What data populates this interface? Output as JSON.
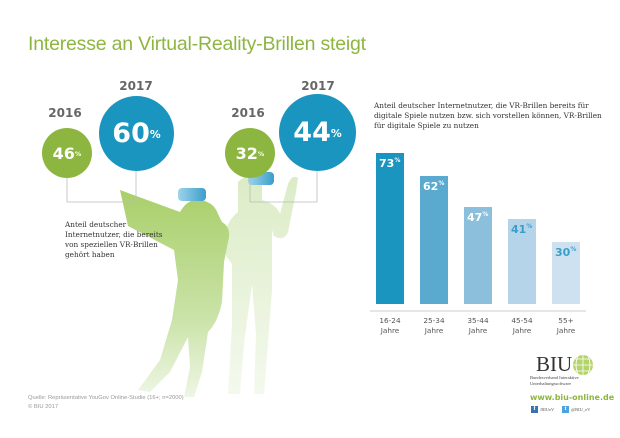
{
  "title": "Interesse an Virtual-Reality-Brillen steigt",
  "circles_left": {
    "y2016": "2016",
    "v2016": "46",
    "y2017": "2017",
    "v2017": "60"
  },
  "circles_right": {
    "y2016": "2016",
    "v2016": "32",
    "y2017": "2017",
    "v2017": "44"
  },
  "percent_sign": "%",
  "note_left": "Anteil deutscher Internetnutzer, die bereits von speziellen VR-Brillen gehört haben",
  "colors": {
    "green": "#8db640",
    "blue": "#1a95bf",
    "bars": [
      "#1a95bf",
      "#5aa9cf",
      "#8cbfdc",
      "#b5d3e9",
      "#cde1f0"
    ]
  },
  "chart_data": {
    "type": "bar",
    "title": "Anteil deutscher Internetnutzer, die VR-Brillen bereits für digitale Spiele nutzen bzw. sich vorstellen können, VR-Brillen für digitale Spiele zu nutzen",
    "categories": [
      "16-24 Jahre",
      "25-34 Jahre",
      "35-44 Jahre",
      "45-54 Jahre",
      "55+ Jahre"
    ],
    "category_lines": [
      [
        "16-24",
        "Jahre"
      ],
      [
        "25-34",
        "Jahre"
      ],
      [
        "35-44",
        "Jahre"
      ],
      [
        "45-54",
        "Jahre"
      ],
      [
        "55+",
        "Jahre"
      ]
    ],
    "values": [
      73,
      62,
      47,
      41,
      30
    ],
    "unit": "%",
    "ylim": [
      0,
      73
    ],
    "grid": false
  },
  "footer": {
    "source": "Quelle: Repräsentative YouGov Online-Studie (16+; n=2000)",
    "copyright": "© BIU 2017"
  },
  "brand": {
    "logo": "BIU",
    "subtitle": "Bundesverband Interaktive Unterhaltungssoftware",
    "url": "www.biu-online.de",
    "facebook": "/BIUeV",
    "twitter": "@BIU_eV"
  }
}
